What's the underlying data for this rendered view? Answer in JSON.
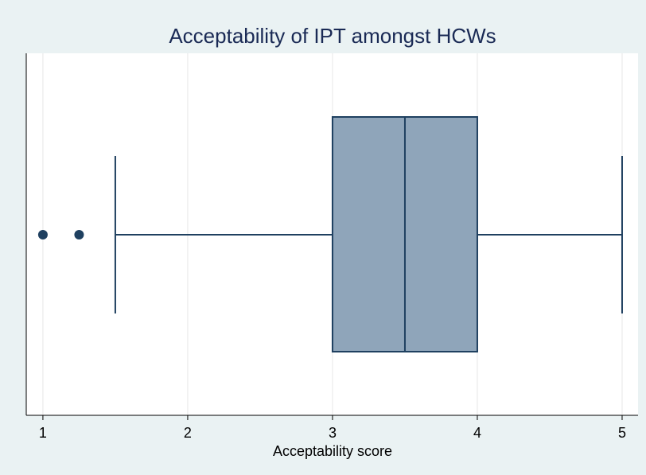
{
  "chart_data": {
    "type": "box",
    "title": "Acceptability of IPT amongst HCWs",
    "xlabel": "Acceptability score",
    "xlim": [
      0.885,
      5.11
    ],
    "xticks": [
      1,
      2,
      3,
      4,
      5
    ],
    "grid": true,
    "color": "#8fa5ba",
    "line_color": "#1f4060",
    "box": {
      "min": 1.5,
      "q1": 3,
      "median": 3.5,
      "q3": 4,
      "max": 5,
      "outliers": [
        1,
        1.25
      ]
    }
  }
}
